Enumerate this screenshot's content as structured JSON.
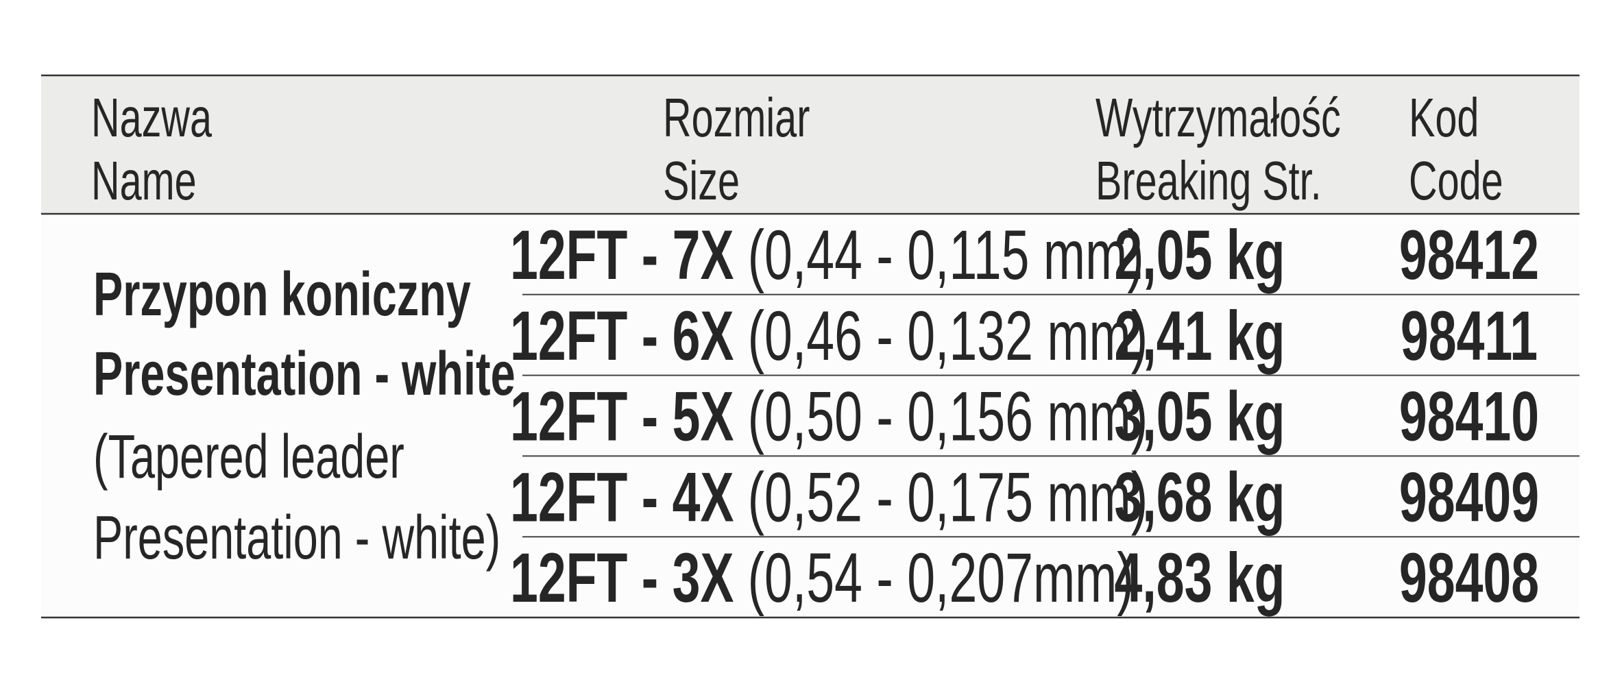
{
  "table": {
    "header": {
      "name": [
        "Nazwa",
        "Name"
      ],
      "size": [
        "Rozmiar",
        "Size"
      ],
      "strength": [
        "Wytrzymałość",
        "Breaking Str."
      ],
      "code": [
        "Kod",
        "Code"
      ]
    },
    "product": {
      "lines": [
        "Przypon koniczny",
        "Presentation - white",
        "(Tapered leader",
        "Presentation - white)"
      ]
    },
    "rows": [
      {
        "model": "12FT - 7X",
        "range": "(0,44 - 0,115 mm)",
        "strength": "2,05 kg",
        "code": "98412"
      },
      {
        "model": "12FT - 6X",
        "range": "(0,46 - 0,132 mm)",
        "strength": "2,41 kg",
        "code": "98411"
      },
      {
        "model": "12FT - 5X",
        "range": "(0,50 - 0,156 mm)",
        "strength": "3,05 kg",
        "code": "98410"
      },
      {
        "model": "12FT - 4X",
        "range": "(0,52 - 0,175 mm)",
        "strength": "3,68 kg",
        "code": "98409"
      },
      {
        "model": "12FT - 3X",
        "range": "(0,54 - 0,207mm)",
        "strength": "4,83 kg",
        "code": "98408"
      }
    ]
  }
}
